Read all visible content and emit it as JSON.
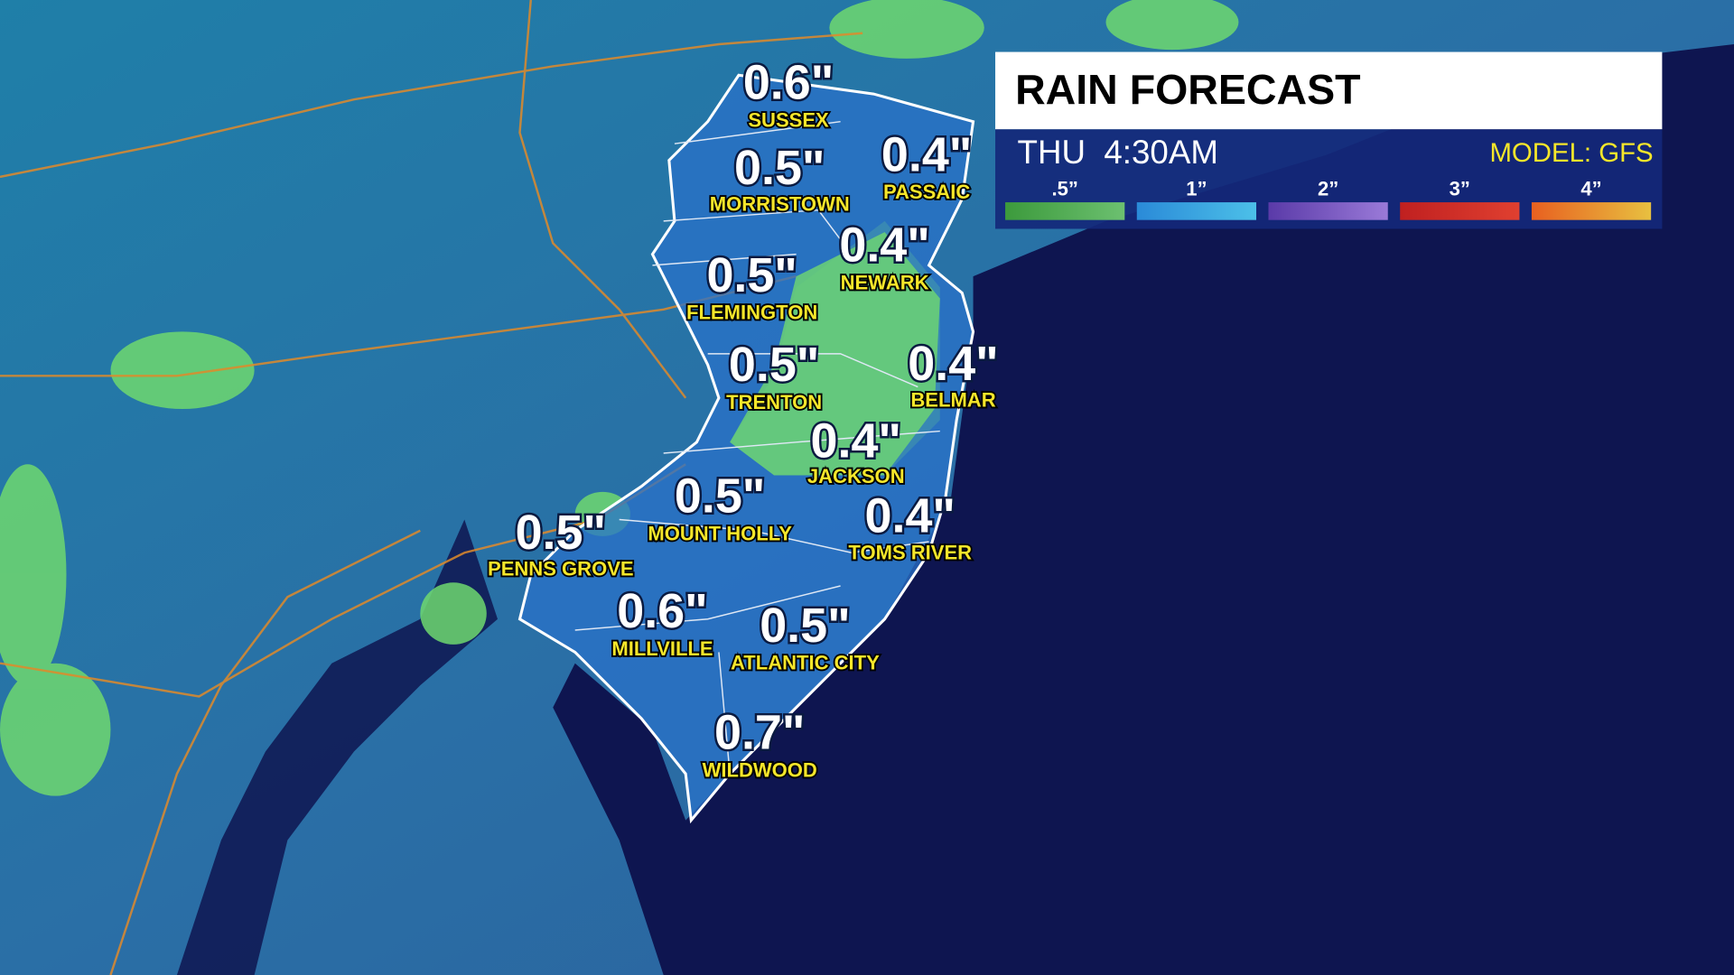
{
  "header": {
    "title": "RAIN FORECAST",
    "time": "THU  4:30AM",
    "model": "MODEL: GFS"
  },
  "legend": [
    ".5”",
    "1”",
    "2”",
    "3”",
    "4”"
  ],
  "locations": [
    {
      "amount": "0.6\"",
      "name": "SUSSEX"
    },
    {
      "amount": "0.5\"",
      "name": "MORRISTOWN"
    },
    {
      "amount": "0.4\"",
      "name": "PASSAIC"
    },
    {
      "amount": "0.4\"",
      "name": "NEWARK"
    },
    {
      "amount": "0.5\"",
      "name": "FLEMINGTON"
    },
    {
      "amount": "0.5\"",
      "name": "TRENTON"
    },
    {
      "amount": "0.4\"",
      "name": "BELMAR"
    },
    {
      "amount": "0.4\"",
      "name": "JACKSON"
    },
    {
      "amount": "0.5\"",
      "name": "MOUNT HOLLY"
    },
    {
      "amount": "0.4\"",
      "name": "TOMS RIVER"
    },
    {
      "amount": "0.5\"",
      "name": "PENNS GROVE"
    },
    {
      "amount": "0.6\"",
      "name": "MILLVILLE"
    },
    {
      "amount": "0.5\"",
      "name": "ATLANTIC CITY"
    },
    {
      "amount": "0.7\"",
      "name": "WILDWOOD"
    }
  ]
}
